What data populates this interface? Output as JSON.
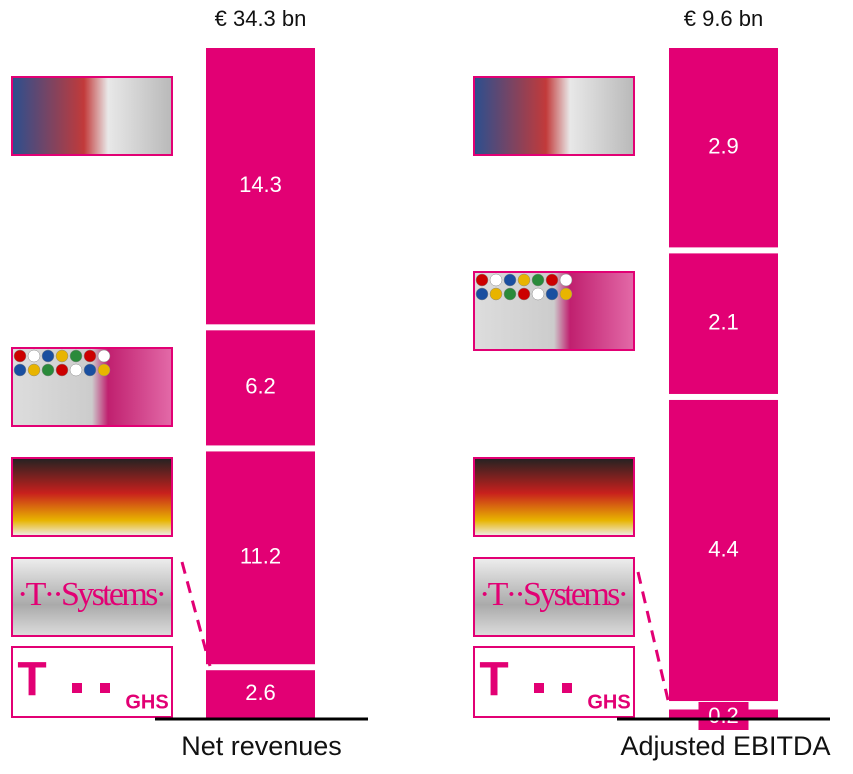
{
  "chart_data": [
    {
      "type": "stacked-bar",
      "title": "€ 34.3 bn",
      "xlabel": "Net revenues",
      "color": "#e20074",
      "series": [
        {
          "values": [
            2.6
          ]
        },
        {
          "values": [
            11.2
          ]
        },
        {
          "values": [
            6.2
          ]
        },
        {
          "values": [
            14.3
          ]
        }
      ],
      "ylim": [
        0,
        34.3
      ]
    },
    {
      "type": "stacked-bar",
      "title": "€ 9.6 bn",
      "xlabel": "Adjusted EBITDA",
      "color": "#e20074",
      "series": [
        {
          "values": [
            0.2
          ]
        },
        {
          "values": [
            4.4
          ]
        },
        {
          "values": [
            2.1
          ]
        },
        {
          "values": [
            2.9
          ]
        }
      ],
      "ylim": [
        0,
        9.6
      ]
    }
  ],
  "logos": {
    "systems": "·T··Systems·",
    "t": "T",
    "ghs": "GHS"
  }
}
